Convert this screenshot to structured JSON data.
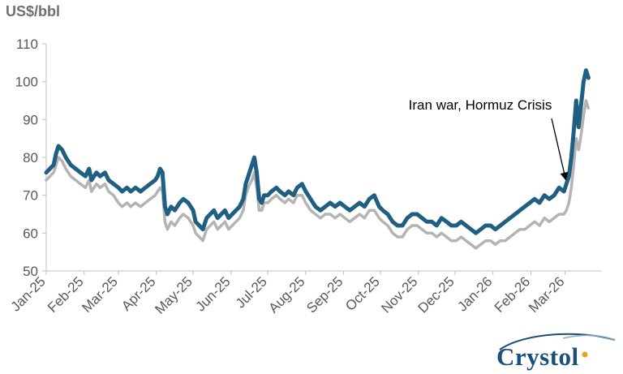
{
  "chart_data": {
    "type": "line",
    "ylabel": "US$/bbl",
    "ylim": [
      50,
      110
    ],
    "yticks": [
      50,
      60,
      70,
      80,
      90,
      100,
      110
    ],
    "xlim": [
      "2025-01-01",
      "2026-03-31"
    ],
    "xticks": [
      {
        "date": "2025-01-01",
        "label": "Jan-25"
      },
      {
        "date": "2025-02-01",
        "label": "Feb-25"
      },
      {
        "date": "2025-03-01",
        "label": "Mar-25"
      },
      {
        "date": "2025-04-01",
        "label": "Apr-25"
      },
      {
        "date": "2025-05-01",
        "label": "May-25"
      },
      {
        "date": "2025-06-01",
        "label": "Jun-25"
      },
      {
        "date": "2025-07-01",
        "label": "Jul-25"
      },
      {
        "date": "2025-08-01",
        "label": "Aug-25"
      },
      {
        "date": "2025-09-01",
        "label": "Sep-25"
      },
      {
        "date": "2025-10-01",
        "label": "Oct-25"
      },
      {
        "date": "2025-11-01",
        "label": "Nov-25"
      },
      {
        "date": "2025-12-01",
        "label": "Dec-25"
      },
      {
        "date": "2026-01-01",
        "label": "Jan-26"
      },
      {
        "date": "2026-02-01",
        "label": "Feb-26"
      },
      {
        "date": "2026-03-01",
        "label": "Mar-26"
      }
    ],
    "grid": false,
    "legend": "none",
    "annotation": {
      "text": "Iran war, Hormuz Crisis",
      "target": {
        "x": "2026-03-02",
        "y": 73
      }
    },
    "series": [
      {
        "color": "#1f5f82",
        "points": [
          [
            "2025-01-01",
            76
          ],
          [
            "2025-01-04",
            77
          ],
          [
            "2025-01-07",
            78
          ],
          [
            "2025-01-09",
            81
          ],
          [
            "2025-01-11",
            83
          ],
          [
            "2025-01-14",
            82
          ],
          [
            "2025-01-17",
            80
          ],
          [
            "2025-01-21",
            78
          ],
          [
            "2025-01-25",
            77
          ],
          [
            "2025-01-29",
            76
          ],
          [
            "2025-02-02",
            75
          ],
          [
            "2025-02-05",
            77
          ],
          [
            "2025-02-07",
            74
          ],
          [
            "2025-02-11",
            76
          ],
          [
            "2025-02-14",
            75
          ],
          [
            "2025-02-18",
            76
          ],
          [
            "2025-02-21",
            74
          ],
          [
            "2025-02-25",
            73
          ],
          [
            "2025-03-01",
            72
          ],
          [
            "2025-03-04",
            71
          ],
          [
            "2025-03-08",
            72
          ],
          [
            "2025-03-11",
            71
          ],
          [
            "2025-03-15",
            72
          ],
          [
            "2025-03-19",
            71
          ],
          [
            "2025-03-23",
            72
          ],
          [
            "2025-03-27",
            73
          ],
          [
            "2025-03-31",
            74
          ],
          [
            "2025-04-02",
            75
          ],
          [
            "2025-04-04",
            77
          ],
          [
            "2025-04-06",
            76
          ],
          [
            "2025-04-08",
            67
          ],
          [
            "2025-04-10",
            65
          ],
          [
            "2025-04-13",
            67
          ],
          [
            "2025-04-16",
            66
          ],
          [
            "2025-04-20",
            68
          ],
          [
            "2025-04-23",
            69
          ],
          [
            "2025-04-27",
            68
          ],
          [
            "2025-05-01",
            66
          ],
          [
            "2025-05-03",
            63
          ],
          [
            "2025-05-06",
            62
          ],
          [
            "2025-05-09",
            61
          ],
          [
            "2025-05-12",
            64
          ],
          [
            "2025-05-15",
            65
          ],
          [
            "2025-05-18",
            66
          ],
          [
            "2025-05-21",
            64
          ],
          [
            "2025-05-24",
            65
          ],
          [
            "2025-05-27",
            66
          ],
          [
            "2025-05-30",
            64
          ],
          [
            "2025-06-02",
            65
          ],
          [
            "2025-06-05",
            66
          ],
          [
            "2025-06-08",
            67
          ],
          [
            "2025-06-11",
            69
          ],
          [
            "2025-06-13",
            73
          ],
          [
            "2025-06-15",
            75
          ],
          [
            "2025-06-18",
            78
          ],
          [
            "2025-06-20",
            80
          ],
          [
            "2025-06-22",
            76
          ],
          [
            "2025-06-24",
            69
          ],
          [
            "2025-06-26",
            68
          ],
          [
            "2025-06-28",
            70
          ],
          [
            "2025-07-01",
            70
          ],
          [
            "2025-07-04",
            71
          ],
          [
            "2025-07-08",
            72
          ],
          [
            "2025-07-11",
            71
          ],
          [
            "2025-07-15",
            70
          ],
          [
            "2025-07-18",
            71
          ],
          [
            "2025-07-22",
            70
          ],
          [
            "2025-07-25",
            72
          ],
          [
            "2025-07-29",
            73
          ],
          [
            "2025-08-01",
            71
          ],
          [
            "2025-08-05",
            69
          ],
          [
            "2025-08-09",
            67
          ],
          [
            "2025-08-13",
            66
          ],
          [
            "2025-08-17",
            67
          ],
          [
            "2025-08-21",
            68
          ],
          [
            "2025-08-25",
            67
          ],
          [
            "2025-08-29",
            68
          ],
          [
            "2025-09-02",
            67
          ],
          [
            "2025-09-06",
            66
          ],
          [
            "2025-09-10",
            67
          ],
          [
            "2025-09-14",
            68
          ],
          [
            "2025-09-18",
            67
          ],
          [
            "2025-09-22",
            69
          ],
          [
            "2025-09-26",
            70
          ],
          [
            "2025-09-30",
            67
          ],
          [
            "2025-10-03",
            66
          ],
          [
            "2025-10-07",
            65
          ],
          [
            "2025-10-11",
            63
          ],
          [
            "2025-10-15",
            62
          ],
          [
            "2025-10-19",
            62
          ],
          [
            "2025-10-23",
            64
          ],
          [
            "2025-10-27",
            65
          ],
          [
            "2025-10-31",
            65
          ],
          [
            "2025-11-04",
            64
          ],
          [
            "2025-11-08",
            63
          ],
          [
            "2025-11-12",
            63
          ],
          [
            "2025-11-16",
            62
          ],
          [
            "2025-11-20",
            64
          ],
          [
            "2025-11-24",
            63
          ],
          [
            "2025-11-28",
            62
          ],
          [
            "2025-12-02",
            62
          ],
          [
            "2025-12-06",
            63
          ],
          [
            "2025-12-10",
            62
          ],
          [
            "2025-12-14",
            61
          ],
          [
            "2025-12-18",
            60
          ],
          [
            "2025-12-22",
            61
          ],
          [
            "2025-12-26",
            62
          ],
          [
            "2025-12-30",
            62
          ],
          [
            "2026-01-03",
            61
          ],
          [
            "2026-01-07",
            62
          ],
          [
            "2026-01-11",
            63
          ],
          [
            "2026-01-15",
            64
          ],
          [
            "2026-01-19",
            65
          ],
          [
            "2026-01-23",
            66
          ],
          [
            "2026-01-27",
            67
          ],
          [
            "2026-01-31",
            68
          ],
          [
            "2026-02-04",
            69
          ],
          [
            "2026-02-08",
            68
          ],
          [
            "2026-02-12",
            70
          ],
          [
            "2026-02-16",
            69
          ],
          [
            "2026-02-20",
            70
          ],
          [
            "2026-02-24",
            72
          ],
          [
            "2026-02-28",
            71
          ],
          [
            "2026-03-02",
            73
          ],
          [
            "2026-03-04",
            75
          ],
          [
            "2026-03-06",
            80
          ],
          [
            "2026-03-08",
            87
          ],
          [
            "2026-03-10",
            95
          ],
          [
            "2026-03-12",
            88
          ],
          [
            "2026-03-14",
            94
          ],
          [
            "2026-03-16",
            100
          ],
          [
            "2026-03-18",
            103
          ],
          [
            "2026-03-20",
            101
          ]
        ]
      },
      {
        "color": "#b4b4b4",
        "points": [
          [
            "2025-01-01",
            74
          ],
          [
            "2025-01-04",
            75
          ],
          [
            "2025-01-07",
            76
          ],
          [
            "2025-01-09",
            78
          ],
          [
            "2025-01-11",
            80
          ],
          [
            "2025-01-14",
            79
          ],
          [
            "2025-01-17",
            77
          ],
          [
            "2025-01-21",
            75
          ],
          [
            "2025-01-25",
            74
          ],
          [
            "2025-01-29",
            73
          ],
          [
            "2025-02-02",
            72
          ],
          [
            "2025-02-05",
            74
          ],
          [
            "2025-02-07",
            71
          ],
          [
            "2025-02-11",
            73
          ],
          [
            "2025-02-14",
            72
          ],
          [
            "2025-02-18",
            73
          ],
          [
            "2025-02-21",
            71
          ],
          [
            "2025-02-25",
            70
          ],
          [
            "2025-03-01",
            68
          ],
          [
            "2025-03-04",
            67
          ],
          [
            "2025-03-08",
            68
          ],
          [
            "2025-03-11",
            67
          ],
          [
            "2025-03-15",
            68
          ],
          [
            "2025-03-19",
            67
          ],
          [
            "2025-03-23",
            68
          ],
          [
            "2025-03-27",
            69
          ],
          [
            "2025-03-31",
            70
          ],
          [
            "2025-04-02",
            71
          ],
          [
            "2025-04-04",
            72
          ],
          [
            "2025-04-06",
            71
          ],
          [
            "2025-04-08",
            63
          ],
          [
            "2025-04-10",
            61
          ],
          [
            "2025-04-13",
            63
          ],
          [
            "2025-04-16",
            62
          ],
          [
            "2025-04-20",
            64
          ],
          [
            "2025-04-23",
            65
          ],
          [
            "2025-04-27",
            64
          ],
          [
            "2025-05-01",
            62
          ],
          [
            "2025-05-03",
            60
          ],
          [
            "2025-05-06",
            59
          ],
          [
            "2025-05-09",
            58
          ],
          [
            "2025-05-12",
            61
          ],
          [
            "2025-05-15",
            62
          ],
          [
            "2025-05-18",
            63
          ],
          [
            "2025-05-21",
            61
          ],
          [
            "2025-05-24",
            62
          ],
          [
            "2025-05-27",
            63
          ],
          [
            "2025-05-30",
            61
          ],
          [
            "2025-06-02",
            62
          ],
          [
            "2025-06-05",
            63
          ],
          [
            "2025-06-08",
            64
          ],
          [
            "2025-06-11",
            66
          ],
          [
            "2025-06-13",
            70
          ],
          [
            "2025-06-15",
            72
          ],
          [
            "2025-06-18",
            74
          ],
          [
            "2025-06-20",
            76
          ],
          [
            "2025-06-22",
            72
          ],
          [
            "2025-06-24",
            66
          ],
          [
            "2025-06-26",
            66
          ],
          [
            "2025-06-28",
            68
          ],
          [
            "2025-07-01",
            68
          ],
          [
            "2025-07-04",
            69
          ],
          [
            "2025-07-08",
            70
          ],
          [
            "2025-07-11",
            69
          ],
          [
            "2025-07-15",
            68
          ],
          [
            "2025-07-18",
            69
          ],
          [
            "2025-07-22",
            68
          ],
          [
            "2025-07-25",
            70
          ],
          [
            "2025-07-29",
            70
          ],
          [
            "2025-08-01",
            68
          ],
          [
            "2025-08-05",
            66
          ],
          [
            "2025-08-09",
            65
          ],
          [
            "2025-08-13",
            64
          ],
          [
            "2025-08-17",
            65
          ],
          [
            "2025-08-21",
            65
          ],
          [
            "2025-08-25",
            64
          ],
          [
            "2025-08-29",
            65
          ],
          [
            "2025-09-02",
            64
          ],
          [
            "2025-09-06",
            63
          ],
          [
            "2025-09-10",
            64
          ],
          [
            "2025-09-14",
            65
          ],
          [
            "2025-09-18",
            64
          ],
          [
            "2025-09-22",
            66
          ],
          [
            "2025-09-26",
            66
          ],
          [
            "2025-09-30",
            64
          ],
          [
            "2025-10-03",
            63
          ],
          [
            "2025-10-07",
            62
          ],
          [
            "2025-10-11",
            60
          ],
          [
            "2025-10-15",
            59
          ],
          [
            "2025-10-19",
            59
          ],
          [
            "2025-10-23",
            61
          ],
          [
            "2025-10-27",
            62
          ],
          [
            "2025-10-31",
            62
          ],
          [
            "2025-11-04",
            61
          ],
          [
            "2025-11-08",
            60
          ],
          [
            "2025-11-12",
            60
          ],
          [
            "2025-11-16",
            59
          ],
          [
            "2025-11-20",
            60
          ],
          [
            "2025-11-24",
            59
          ],
          [
            "2025-11-28",
            58
          ],
          [
            "2025-12-02",
            58
          ],
          [
            "2025-12-06",
            59
          ],
          [
            "2025-12-10",
            58
          ],
          [
            "2025-12-14",
            57
          ],
          [
            "2025-12-18",
            56
          ],
          [
            "2025-12-22",
            57
          ],
          [
            "2025-12-26",
            58
          ],
          [
            "2025-12-30",
            58
          ],
          [
            "2026-01-03",
            57
          ],
          [
            "2026-01-07",
            58
          ],
          [
            "2026-01-11",
            58
          ],
          [
            "2026-01-15",
            59
          ],
          [
            "2026-01-19",
            60
          ],
          [
            "2026-01-23",
            61
          ],
          [
            "2026-01-27",
            61
          ],
          [
            "2026-01-31",
            62
          ],
          [
            "2026-02-04",
            63
          ],
          [
            "2026-02-08",
            62
          ],
          [
            "2026-02-12",
            64
          ],
          [
            "2026-02-16",
            63
          ],
          [
            "2026-02-20",
            64
          ],
          [
            "2026-02-24",
            65
          ],
          [
            "2026-02-28",
            65
          ],
          [
            "2026-03-02",
            66
          ],
          [
            "2026-03-04",
            68
          ],
          [
            "2026-03-06",
            72
          ],
          [
            "2026-03-08",
            78
          ],
          [
            "2026-03-10",
            85
          ],
          [
            "2026-03-12",
            82
          ],
          [
            "2026-03-14",
            86
          ],
          [
            "2026-03-16",
            91
          ],
          [
            "2026-03-18",
            95
          ],
          [
            "2026-03-20",
            93
          ]
        ]
      }
    ]
  },
  "logo": {
    "text": "Crystol"
  }
}
